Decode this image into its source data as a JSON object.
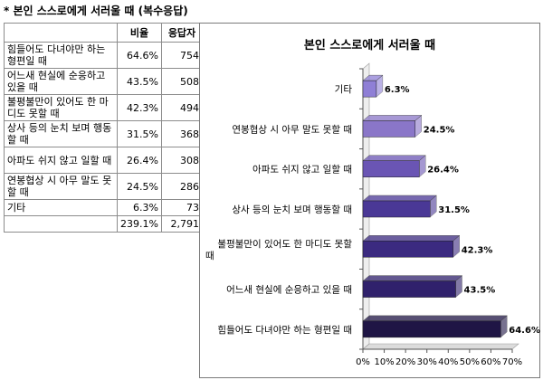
{
  "header": {
    "title": "* 본인 스스로에게 서러울 때 (복수응답)"
  },
  "table": {
    "columns": [
      "",
      "비율",
      "응답자"
    ],
    "rows": [
      {
        "label": "힘들어도 다녀야만 하는 형편일 때",
        "pct": "64.6%",
        "n": "754"
      },
      {
        "label": "어느새 현실에 순응하고 있을 때",
        "pct": "43.5%",
        "n": "508"
      },
      {
        "label": "불평불만이 있어도 한 마디도 못할 때",
        "pct": "42.3%",
        "n": "494"
      },
      {
        "label": "상사 등의 눈치 보며 행동할 때",
        "pct": "31.5%",
        "n": "368"
      },
      {
        "label": "아파도 쉬지 않고 일할 때",
        "pct": "26.4%",
        "n": "308"
      },
      {
        "label": "연봉협상 시 아무 말도 못할 때",
        "pct": "24.5%",
        "n": "286"
      },
      {
        "label": "기타",
        "pct": "6.3%",
        "n": "73"
      }
    ],
    "total": {
      "label": "",
      "pct": "239.1%",
      "n": "2,791"
    }
  },
  "chart_data": {
    "type": "bar",
    "orientation": "horizontal",
    "title": "본인 스스로에게 서러울 때",
    "categories": [
      "기타",
      "연봉협상 시 아무 말도 못할 때",
      "아파도 쉬지 않고 일할 때",
      "상사 등의 눈치 보며 행동할 때",
      "불평불만이 있어도 한 마디도 못할 때",
      "어느새 현실에 순응하고 있을 때",
      "힘들어도 다녀야만 하는 형편일 때"
    ],
    "category_lines": [
      [
        "기타"
      ],
      [
        "연봉협상 시 아무 말도 못할 때"
      ],
      [
        "아파도 쉬지 않고 일할 때"
      ],
      [
        "상사 등의 눈치 보며 행동할 때"
      ],
      [
        "불평불만이 있어도 한 마디도 못할",
        "때"
      ],
      [
        "어느새 현실에 순응하고 있을 때"
      ],
      [
        "힘들어도 다녀야만 하는 형편일 때"
      ]
    ],
    "values": [
      6.3,
      24.5,
      26.4,
      31.5,
      42.3,
      43.5,
      64.6
    ],
    "data_labels": [
      "6.3%",
      "24.5%",
      "26.4%",
      "31.5%",
      "42.3%",
      "43.5%",
      "64.6%"
    ],
    "xlim": [
      0,
      70
    ],
    "xticks": [
      0,
      10,
      20,
      30,
      40,
      50,
      60,
      70
    ],
    "xtick_labels": [
      "0%",
      "10%",
      "20%",
      "30%",
      "40%",
      "50%",
      "60%",
      "70%"
    ],
    "bar_colors": [
      "#8f7fd6",
      "#8a76c8",
      "#6a55b4",
      "#4a3896",
      "#3b2a80",
      "#30216c",
      "#1f1545"
    ],
    "style": "3d",
    "grid": false,
    "legend": "none"
  }
}
